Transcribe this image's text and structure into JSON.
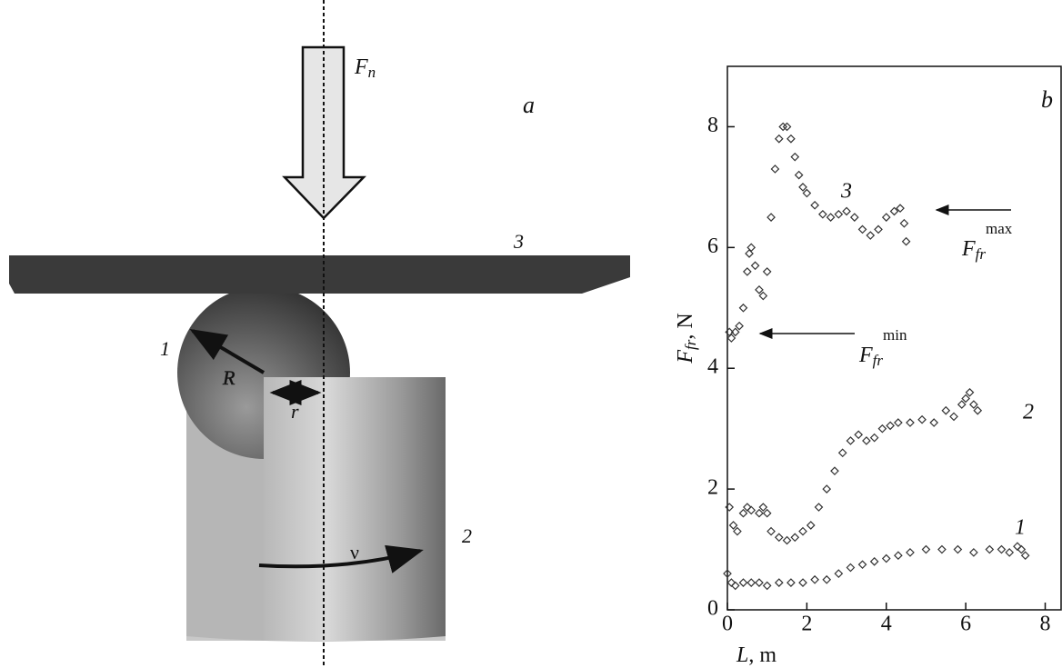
{
  "diagram": {
    "panel_label": "a",
    "force_label": {
      "main": "F",
      "sub": "n"
    },
    "plate_label": "3",
    "ball_label": "1",
    "cylinder_label": "2",
    "radius_label": "R",
    "offset_label": "r",
    "speed_label": "ν"
  },
  "chart_data": {
    "type": "scatter",
    "panel_label": "b",
    "xlabel": {
      "main": "L",
      "rest": ", m"
    },
    "ylabel": {
      "main": "F",
      "sub": "fr",
      "rest": ", N"
    },
    "xlim": [
      0,
      8.4
    ],
    "ylim": [
      0,
      9
    ],
    "xticks": [
      0,
      2,
      4,
      6,
      8
    ],
    "yticks": [
      0,
      2,
      4,
      6,
      8
    ],
    "annotations": [
      {
        "main": "F",
        "sub": "fr",
        "sup": "max"
      },
      {
        "main": "F",
        "sub": "fr",
        "sup": "min"
      }
    ],
    "series": [
      {
        "name": "1",
        "color": "#333333",
        "x": [
          0.0,
          0.1,
          0.2,
          0.4,
          0.6,
          0.8,
          1.0,
          1.3,
          1.6,
          1.9,
          2.2,
          2.5,
          2.8,
          3.1,
          3.4,
          3.7,
          4.0,
          4.3,
          4.6,
          5.0,
          5.4,
          5.8,
          6.2,
          6.6,
          6.9,
          7.1,
          7.3,
          7.4,
          7.5
        ],
        "values": [
          0.6,
          0.45,
          0.4,
          0.45,
          0.45,
          0.45,
          0.4,
          0.45,
          0.45,
          0.45,
          0.5,
          0.5,
          0.6,
          0.7,
          0.75,
          0.8,
          0.85,
          0.9,
          0.95,
          1.0,
          1.0,
          1.0,
          0.95,
          1.0,
          1.0,
          0.95,
          1.05,
          1.0,
          0.9
        ]
      },
      {
        "name": "2",
        "color": "#333333",
        "x": [
          0.05,
          0.15,
          0.25,
          0.4,
          0.5,
          0.6,
          0.8,
          0.9,
          1.0,
          1.1,
          1.3,
          1.5,
          1.7,
          1.9,
          2.1,
          2.3,
          2.5,
          2.7,
          2.9,
          3.1,
          3.3,
          3.5,
          3.7,
          3.9,
          4.1,
          4.3,
          4.6,
          4.9,
          5.2,
          5.5,
          5.7,
          5.9,
          6.0,
          6.1,
          6.2,
          6.3
        ],
        "values": [
          1.7,
          1.4,
          1.3,
          1.6,
          1.7,
          1.65,
          1.6,
          1.7,
          1.6,
          1.3,
          1.2,
          1.15,
          1.2,
          1.3,
          1.4,
          1.7,
          2.0,
          2.3,
          2.6,
          2.8,
          2.9,
          2.8,
          2.85,
          3.0,
          3.05,
          3.1,
          3.1,
          3.15,
          3.1,
          3.3,
          3.2,
          3.4,
          3.5,
          3.6,
          3.4,
          3.3
        ]
      },
      {
        "name": "3",
        "color": "#333333",
        "x": [
          0.05,
          0.1,
          0.2,
          0.3,
          0.4,
          0.5,
          0.55,
          0.6,
          0.7,
          0.8,
          0.9,
          1.0,
          1.1,
          1.2,
          1.3,
          1.4,
          1.5,
          1.6,
          1.7,
          1.8,
          1.9,
          2.0,
          2.2,
          2.4,
          2.6,
          2.8,
          3.0,
          3.2,
          3.4,
          3.6,
          3.8,
          4.0,
          4.2,
          4.35,
          4.45,
          4.5
        ],
        "values": [
          4.6,
          4.5,
          4.6,
          4.7,
          5.0,
          5.6,
          5.9,
          6.0,
          5.7,
          5.3,
          5.2,
          5.6,
          6.5,
          7.3,
          7.8,
          8.0,
          8.0,
          7.8,
          7.5,
          7.2,
          7.0,
          6.9,
          6.7,
          6.55,
          6.5,
          6.55,
          6.6,
          6.5,
          6.3,
          6.2,
          6.3,
          6.5,
          6.6,
          6.65,
          6.4,
          6.1
        ]
      }
    ]
  }
}
